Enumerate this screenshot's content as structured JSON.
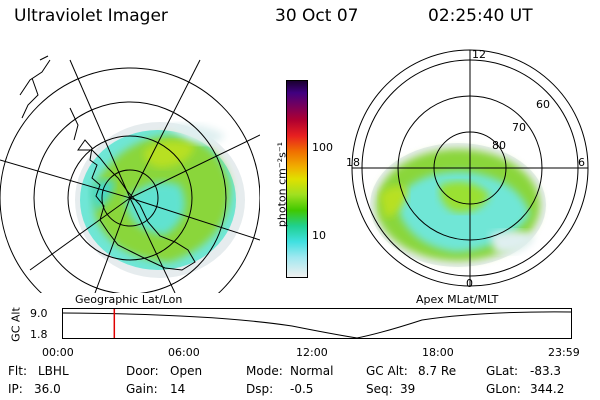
{
  "header": {
    "instrument": "Ultraviolet Imager",
    "date": "30 Oct 07",
    "time": "02:25:40 UT"
  },
  "left_map": {
    "caption": "Geographic Lat/Lon"
  },
  "colorbar": {
    "unit_label": "photon cm⁻²s⁻¹",
    "ticks": [
      "100",
      "10"
    ],
    "scale": "log"
  },
  "right_map": {
    "caption": "Apex MLat/MLT",
    "mlt_labels": {
      "top": "12",
      "left": "18",
      "right": "6",
      "bottom": "0"
    },
    "lat_labels": [
      "80",
      "70",
      "60"
    ]
  },
  "timeline": {
    "ylabel": "GC Alt",
    "yticks": [
      "9.0",
      "1.8"
    ],
    "xticks": [
      "00:00",
      "06:00",
      "12:00",
      "18:00",
      "23:59"
    ],
    "marker_time_fraction": 0.101,
    "marker_color": "#e00000"
  },
  "info": {
    "flt_label": "Flt:",
    "flt_value": "LBHL",
    "ip_label": "IP:",
    "ip_value": "36.0",
    "door_label": "Door:",
    "door_value": "Open",
    "gain_label": "Gain:",
    "gain_value": "14",
    "mode_label": "Mode:",
    "mode_value": "Normal",
    "dsp_label": "Dsp:",
    "dsp_value": "-0.5",
    "gcalt_label": "GC Alt:",
    "gcalt_value": "8.7 Re",
    "seq_label": "Seq:",
    "seq_value": "39",
    "glat_label": "GLat:",
    "glat_value": "-83.3",
    "glon_label": "GLon:",
    "glon_value": "344.2"
  }
}
